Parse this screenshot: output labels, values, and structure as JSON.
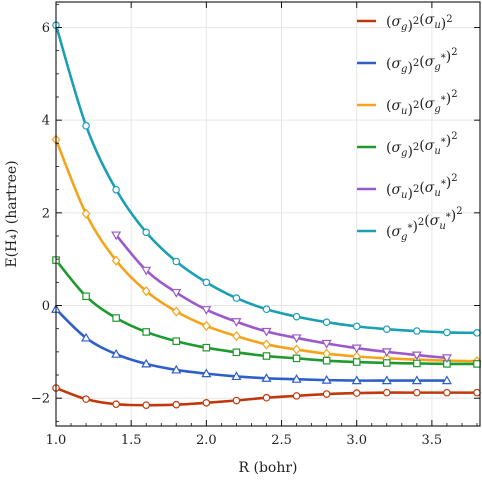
{
  "chart_data": {
    "type": "line",
    "xlabel": "R (bohr)",
    "ylabel": "E(H₄) (hartree)",
    "xlim": [
      1.0,
      3.82
    ],
    "ylim": [
      -2.6,
      6.55
    ],
    "xticks": [
      1.0,
      1.5,
      2.0,
      2.5,
      3.0,
      3.5
    ],
    "xtick_labels": [
      "1.0",
      "1.5",
      "2.0",
      "2.5",
      "3.0",
      "3.5"
    ],
    "yticks": [
      -2,
      0,
      2,
      4,
      6
    ],
    "ytick_labels": [
      "−2",
      "0",
      "2",
      "4",
      "6"
    ],
    "grid": true,
    "legend_position": "top-right",
    "series": [
      {
        "name": "(σg)²(σu)²",
        "legend_base": [
          "σ",
          "g",
          "",
          "σ",
          "u",
          ""
        ],
        "color": "#c0390b",
        "marker": "circle",
        "x": [
          1.0,
          1.2,
          1.4,
          1.6,
          1.8,
          2.0,
          2.2,
          2.4,
          2.6,
          2.8,
          3.0,
          3.2,
          3.4,
          3.6,
          3.8
        ],
        "y": [
          -1.78,
          -2.02,
          -2.13,
          -2.15,
          -2.14,
          -2.1,
          -2.05,
          -1.99,
          -1.95,
          -1.91,
          -1.89,
          -1.88,
          -1.88,
          -1.88,
          -1.88
        ]
      },
      {
        "name": "(σg)²(σg*)²",
        "legend_base": [
          "σ",
          "g",
          "",
          "σ",
          "g",
          "*"
        ],
        "color": "#2f5fc8",
        "marker": "triangle-up",
        "x": [
          1.0,
          1.2,
          1.4,
          1.6,
          1.8,
          2.0,
          2.2,
          2.4,
          2.6,
          2.8,
          3.0,
          3.2,
          3.4,
          3.6
        ],
        "y": [
          -0.08,
          -0.7,
          -1.05,
          -1.26,
          -1.39,
          -1.47,
          -1.53,
          -1.57,
          -1.59,
          -1.61,
          -1.62,
          -1.62,
          -1.62,
          -1.62
        ]
      },
      {
        "name": "(σu)²(σg*)²",
        "legend_base": [
          "σ",
          "u",
          "",
          "σ",
          "g",
          "*"
        ],
        "color": "#f5a31a",
        "marker": "diamond",
        "x": [
          1.0,
          1.2,
          1.4,
          1.6,
          1.8,
          2.0,
          2.2,
          2.4,
          2.6,
          2.8,
          3.0,
          3.2,
          3.4,
          3.6,
          3.8
        ],
        "y": [
          3.58,
          1.98,
          0.97,
          0.31,
          -0.13,
          -0.44,
          -0.66,
          -0.84,
          -0.95,
          -1.04,
          -1.1,
          -1.14,
          -1.17,
          -1.19,
          -1.2
        ]
      },
      {
        "name": "(σg)²(σu*)²",
        "legend_base": [
          "σ",
          "g",
          "",
          "σ",
          "u",
          "*"
        ],
        "color": "#1f9a2e",
        "marker": "square",
        "x": [
          1.0,
          1.2,
          1.4,
          1.6,
          1.8,
          2.0,
          2.2,
          2.4,
          2.6,
          2.8,
          3.0,
          3.2,
          3.4,
          3.6,
          3.8
        ],
        "y": [
          0.98,
          0.2,
          -0.27,
          -0.57,
          -0.77,
          -0.91,
          -1.01,
          -1.09,
          -1.14,
          -1.19,
          -1.22,
          -1.24,
          -1.25,
          -1.26,
          -1.26
        ]
      },
      {
        "name": "(σu)²(σu*)²",
        "legend_base": [
          "σ",
          "u",
          "",
          "σ",
          "u",
          "*"
        ],
        "color": "#9b59c9",
        "marker": "triangle-down",
        "x": [
          1.4,
          1.6,
          1.8,
          2.0,
          2.2,
          2.4,
          2.6,
          2.8,
          3.0,
          3.2,
          3.4,
          3.6
        ],
        "y": [
          1.52,
          0.76,
          0.28,
          -0.09,
          -0.35,
          -0.56,
          -0.7,
          -0.82,
          -0.92,
          -1.0,
          -1.07,
          -1.13
        ]
      },
      {
        "name": "(σg*)²(σu*)²",
        "legend_base": [
          "σ",
          "g",
          "*",
          "σ",
          "u",
          "*"
        ],
        "color": "#1a9fb5",
        "marker": "circle",
        "x": [
          1.0,
          1.2,
          1.4,
          1.6,
          1.8,
          2.0,
          2.2,
          2.4,
          2.6,
          2.8,
          3.0,
          3.2,
          3.4,
          3.6,
          3.8
        ],
        "y": [
          6.05,
          3.88,
          2.5,
          1.58,
          0.95,
          0.5,
          0.16,
          -0.08,
          -0.24,
          -0.36,
          -0.45,
          -0.51,
          -0.55,
          -0.58,
          -0.59
        ]
      }
    ]
  }
}
